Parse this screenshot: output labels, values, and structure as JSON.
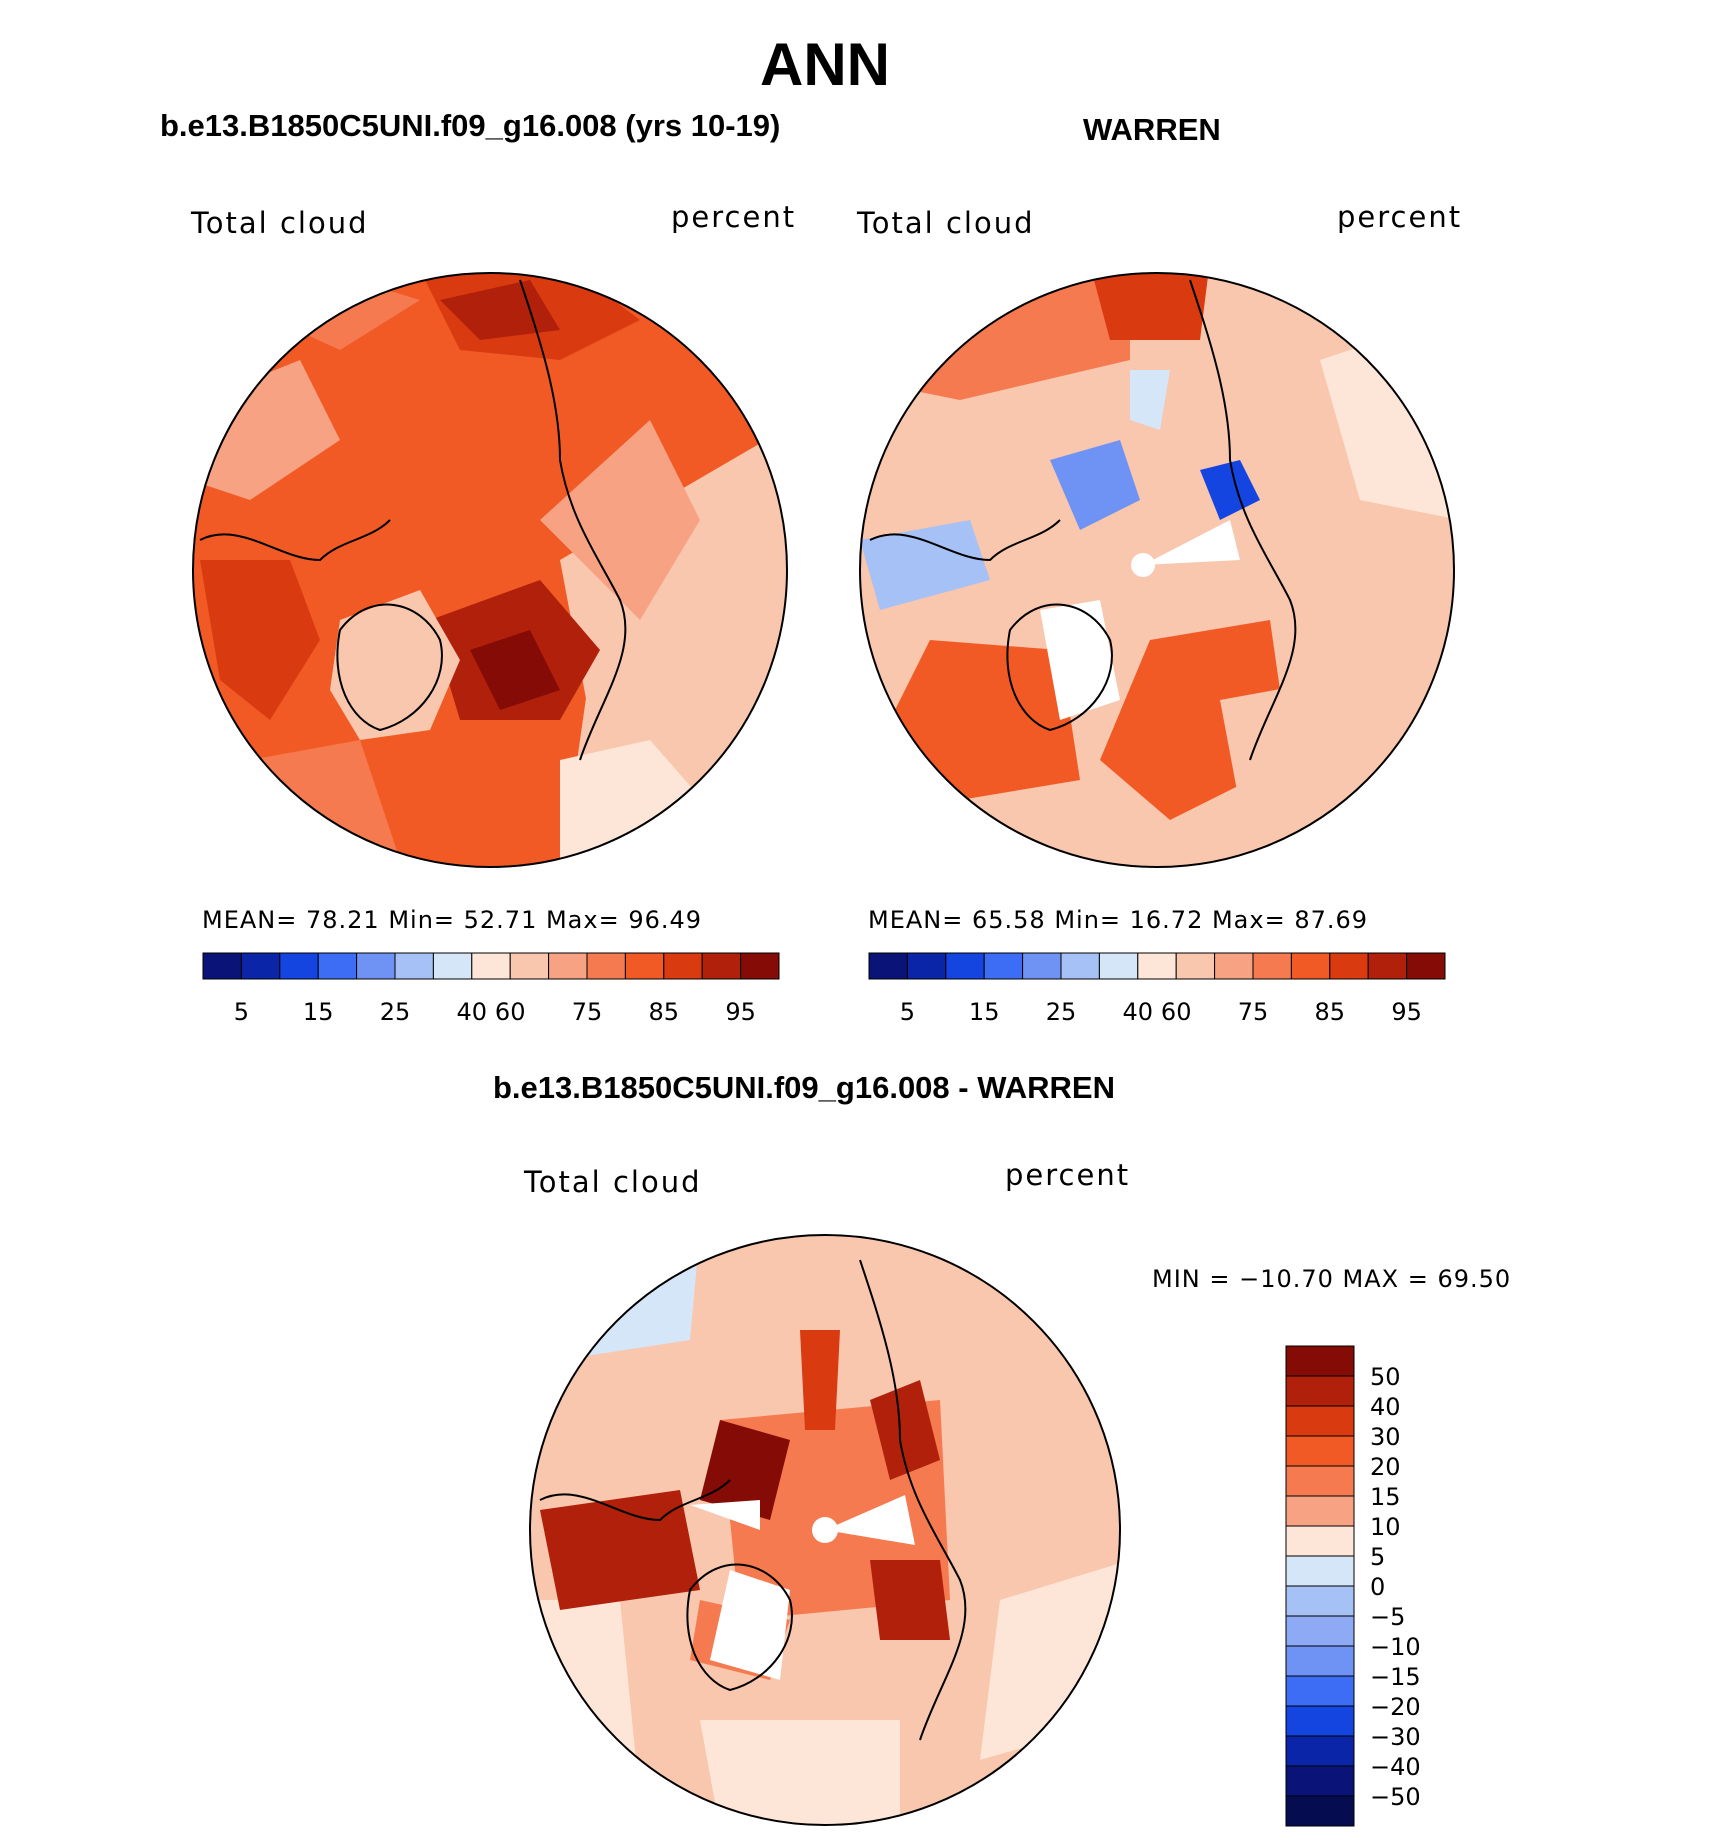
{
  "figure": {
    "season": "ANN",
    "panel_left": {
      "title": "b.e13.B1850C5UNI.f09_g16.008 (yrs 10-19)",
      "var_label": "Total cloud",
      "units": "percent",
      "stats": "MEAN=   78.21   Min=   52.71   Max=   96.49"
    },
    "panel_right": {
      "title": "WARREN",
      "var_label": "Total cloud",
      "units": "percent",
      "stats": "MEAN=   65.58   Min=   16.72   Max=   87.69"
    },
    "panel_diff": {
      "title": "b.e13.B1850C5UNI.f09_g16.008 - WARREN",
      "var_label": "Total cloud",
      "units": "percent",
      "stats": "MIN = −10.70 MAX =   69.50"
    }
  },
  "chart_data": [
    {
      "type": "heatmap",
      "projection": "north polar stereographic",
      "title": "b.e13.B1850C5UNI.f09_g16.008 (yrs 10-19)",
      "variable": "Total cloud",
      "units": "percent",
      "mean": 78.21,
      "min": 52.71,
      "max": 96.49,
      "colorbar_ticks": [
        "5",
        "15",
        "25",
        "40",
        "60",
        "75",
        "85",
        "95"
      ],
      "colorbar_colors": [
        "#0a1478",
        "#0a25a8",
        "#1545e0",
        "#3d6cf5",
        "#6f93f5",
        "#a6c1f5",
        "#d5e6f8",
        "#fde6d8",
        "#f9c6ae",
        "#f7a283",
        "#f57a50",
        "#f15a25",
        "#d93a10",
        "#b0200a",
        "#850b07"
      ]
    },
    {
      "type": "heatmap",
      "projection": "north polar stereographic",
      "title": "WARREN",
      "variable": "Total cloud",
      "units": "percent",
      "mean": 65.58,
      "min": 16.72,
      "max": 87.69,
      "colorbar_ticks": [
        "5",
        "15",
        "25",
        "40",
        "60",
        "75",
        "85",
        "95"
      ],
      "colorbar_colors": [
        "#0a1478",
        "#0a25a8",
        "#1545e0",
        "#3d6cf5",
        "#6f93f5",
        "#a6c1f5",
        "#d5e6f8",
        "#fde6d8",
        "#f9c6ae",
        "#f7a283",
        "#f57a50",
        "#f15a25",
        "#d93a10",
        "#b0200a",
        "#850b07"
      ]
    },
    {
      "type": "heatmap",
      "projection": "north polar stereographic",
      "title": "b.e13.B1850C5UNI.f09_g16.008 - WARREN",
      "variable": "Total cloud",
      "units": "percent",
      "min": -10.7,
      "max": 69.5,
      "colorbar_ticks": [
        "50",
        "40",
        "30",
        "20",
        "15",
        "10",
        "5",
        "0",
        "−5",
        "−10",
        "−15",
        "−20",
        "−30",
        "−40",
        "−50"
      ],
      "colorbar_colors": [
        "#850b07",
        "#b0200a",
        "#d93a10",
        "#f15a25",
        "#f57a50",
        "#f7a283",
        "#fde6d8",
        "#d5e6f8",
        "#a6c1f5",
        "#8eaaf5",
        "#6f93f5",
        "#3d6cf5",
        "#1545e0",
        "#0a25a8",
        "#0a1478",
        "#060c50"
      ]
    }
  ]
}
